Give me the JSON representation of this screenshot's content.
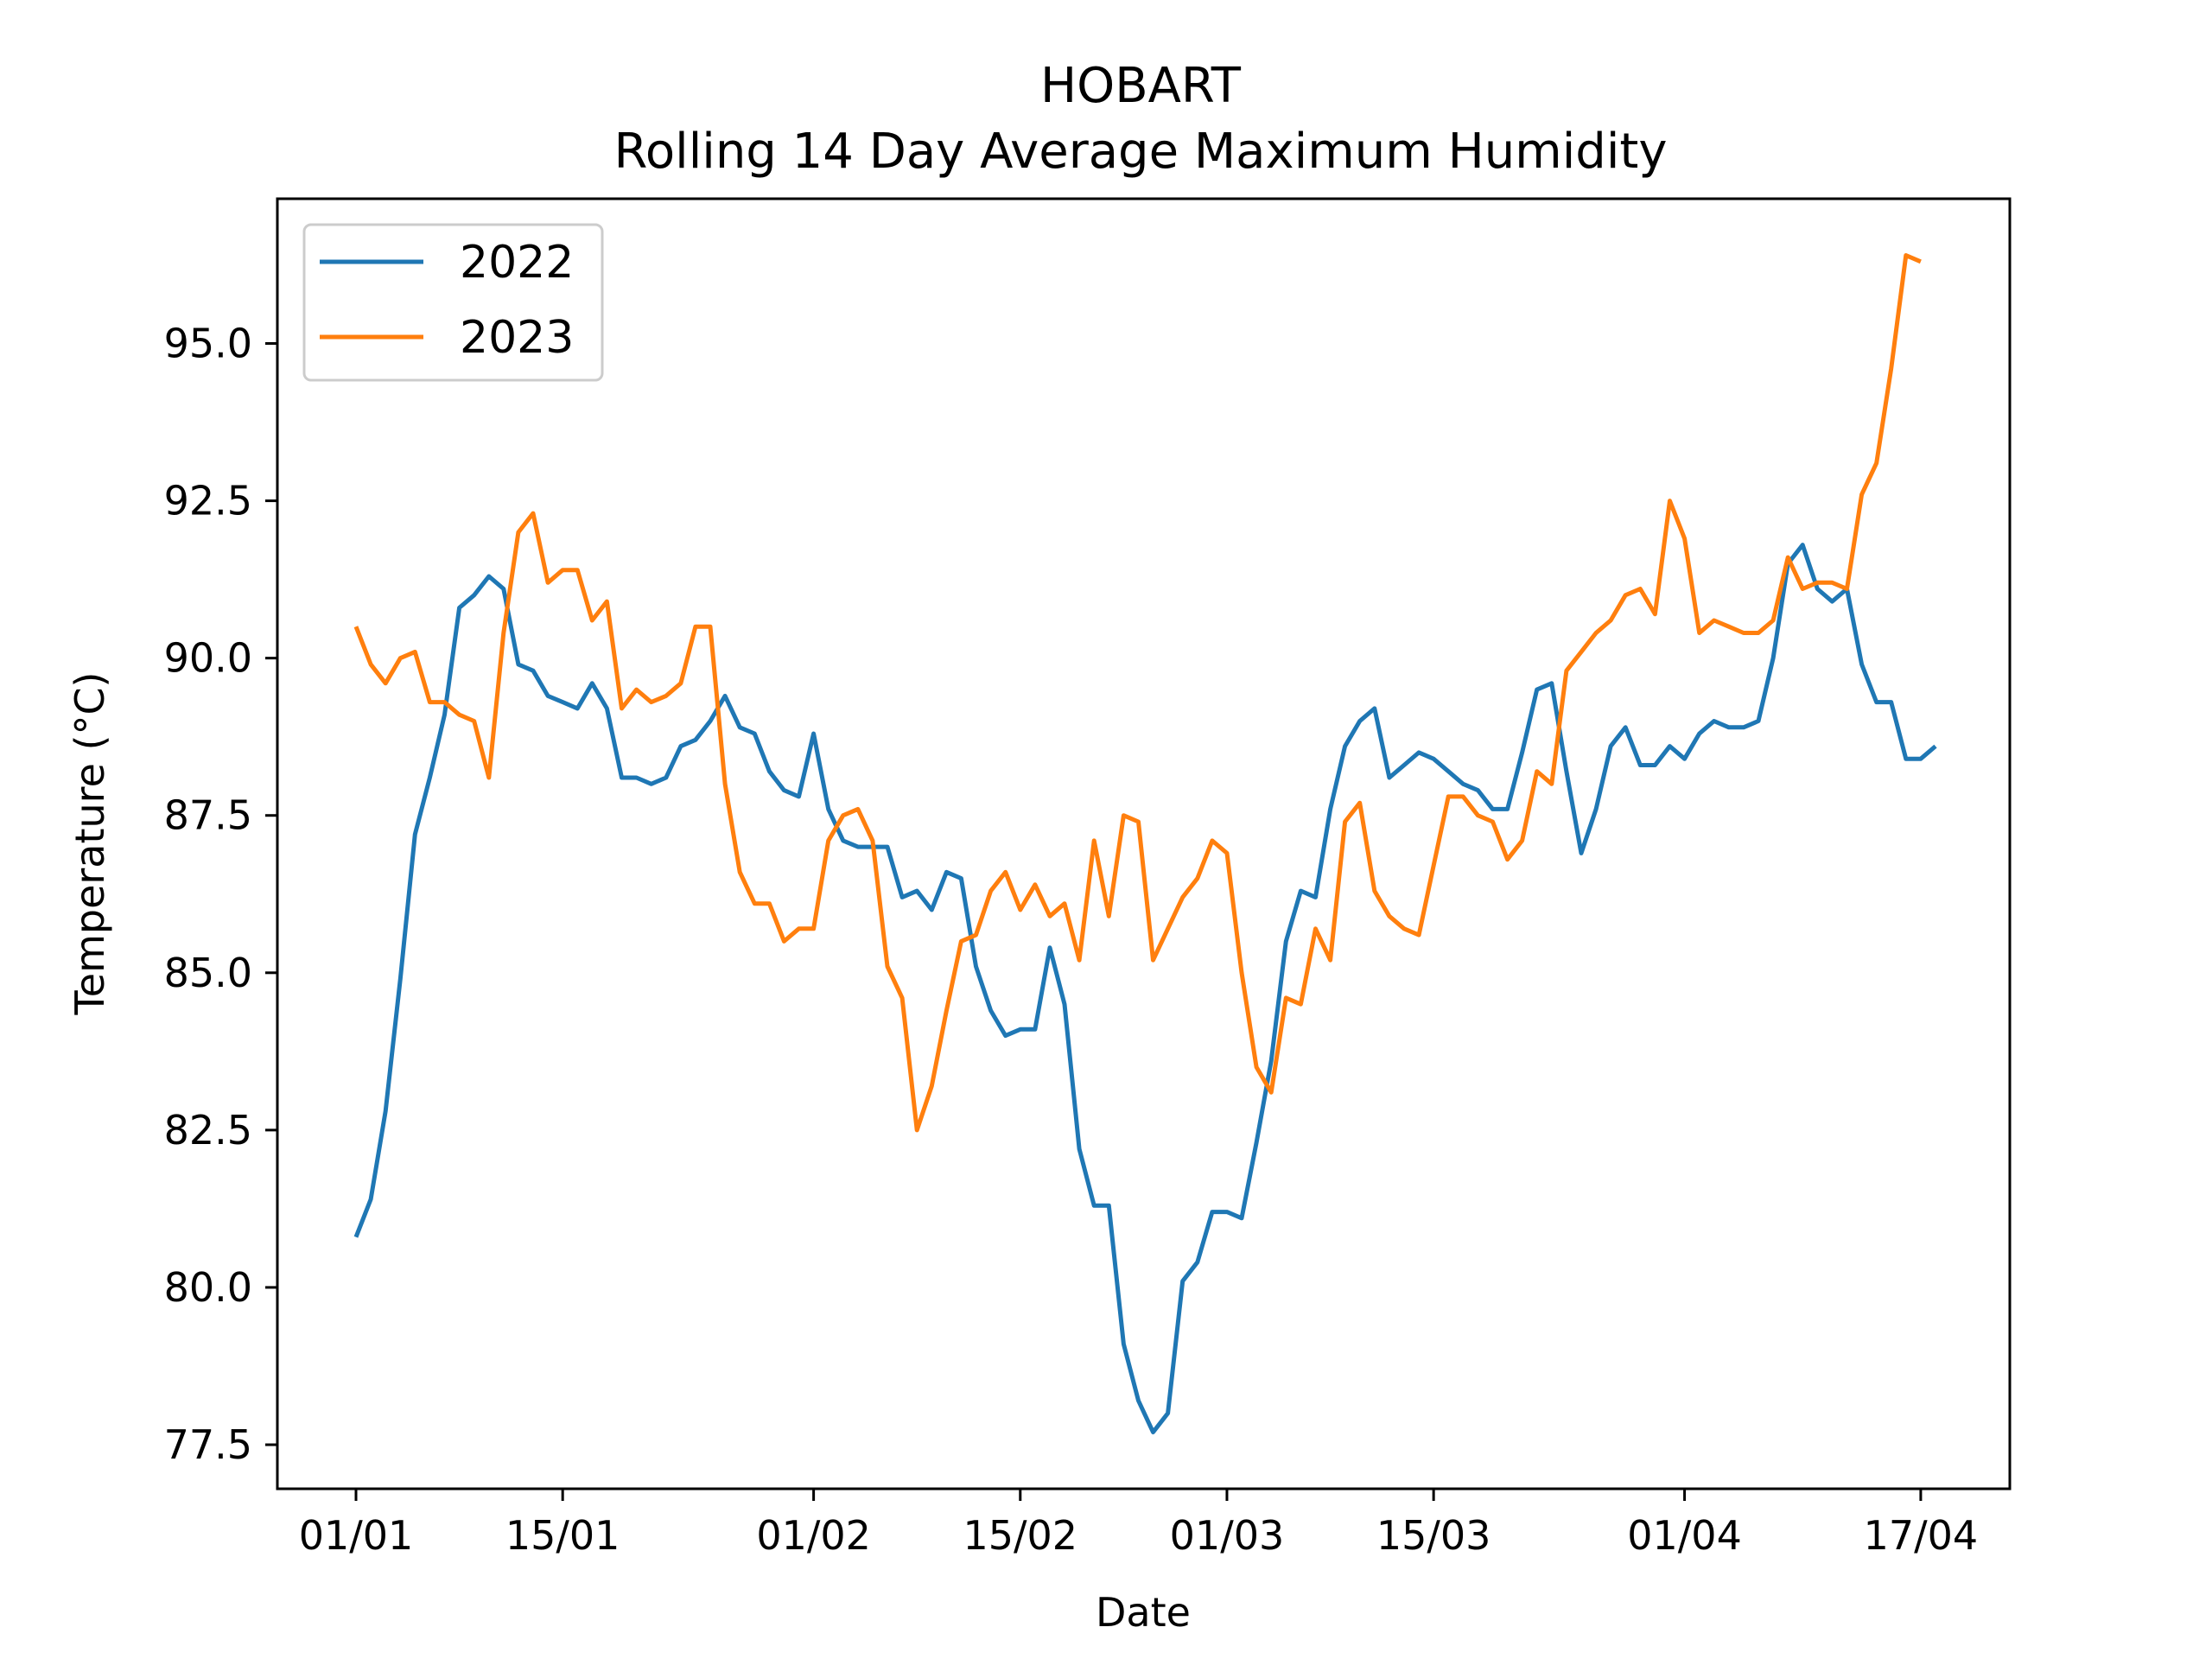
{
  "chart_data": {
    "type": "line",
    "title": "HOBART",
    "subtitle": "Rolling 14 Day Average Maximum Humidity",
    "xlabel": "Date",
    "ylabel": "Temperature (°C)",
    "x_start": "01/01",
    "x_end": "17/04",
    "ylim": [
      76.8,
      97.3
    ],
    "xticks": [
      {
        "day": 0,
        "label": "01/01"
      },
      {
        "day": 14,
        "label": "15/01"
      },
      {
        "day": 31,
        "label": "01/02"
      },
      {
        "day": 45,
        "label": "15/02"
      },
      {
        "day": 59,
        "label": "01/03"
      },
      {
        "day": 73,
        "label": "15/03"
      },
      {
        "day": 90,
        "label": "01/04"
      },
      {
        "day": 106,
        "label": "17/04"
      }
    ],
    "yticks": [
      77.5,
      80.0,
      82.5,
      85.0,
      87.5,
      90.0,
      92.5,
      95.0
    ],
    "ytick_labels": [
      "77.5",
      "80.0",
      "82.5",
      "85.0",
      "87.5",
      "90.0",
      "92.5",
      "95.0"
    ],
    "grid": false,
    "legend_position": "top-left",
    "series": [
      {
        "name": "2022",
        "color": "#1f77b4",
        "values": [
          80.8,
          81.4,
          82.8,
          84.9,
          87.2,
          88.1,
          89.1,
          90.8,
          91.0,
          91.3,
          91.1,
          89.9,
          89.8,
          89.4,
          89.3,
          89.2,
          89.6,
          89.2,
          88.1,
          88.1,
          88.0,
          88.1,
          88.6,
          88.7,
          89.0,
          89.4,
          88.9,
          88.8,
          88.2,
          87.9,
          87.8,
          88.8,
          87.6,
          87.1,
          87.0,
          87.0,
          87.0,
          86.2,
          86.3,
          86.0,
          86.6,
          86.5,
          85.1,
          84.4,
          84.0,
          84.1,
          84.1,
          85.4,
          84.5,
          82.2,
          81.3,
          81.3,
          79.1,
          78.2,
          77.7,
          78.0,
          80.1,
          80.4,
          81.2,
          81.2,
          81.1,
          82.3,
          83.6,
          85.5,
          86.3,
          86.2,
          87.6,
          88.6,
          89.0,
          89.2,
          88.1,
          88.3,
          88.5,
          88.4,
          88.2,
          88.0,
          87.9,
          87.6,
          87.6,
          88.5,
          89.5,
          89.6,
          88.2,
          86.9,
          87.6,
          88.6,
          88.9,
          88.3,
          88.3,
          88.6,
          88.4,
          88.8,
          89.0,
          88.9,
          88.9,
          89.0,
          90.0,
          91.5,
          91.8,
          91.1,
          90.9,
          91.1,
          89.9,
          89.3,
          89.3,
          88.4,
          88.4,
          88.6
        ]
      },
      {
        "name": "2023",
        "color": "#ff7f0e",
        "values": [
          90.5,
          89.9,
          89.6,
          90.0,
          90.1,
          89.3,
          89.3,
          89.1,
          89.0,
          88.1,
          90.4,
          92.0,
          92.3,
          91.2,
          91.4,
          91.4,
          90.6,
          90.9,
          89.2,
          89.5,
          89.3,
          89.4,
          89.6,
          90.5,
          90.5,
          88.0,
          86.6,
          86.1,
          86.1,
          85.5,
          85.7,
          85.7,
          87.1,
          87.5,
          87.6,
          87.1,
          85.1,
          84.6,
          82.5,
          83.2,
          84.4,
          85.5,
          85.6,
          86.3,
          86.6,
          86.0,
          86.4,
          85.9,
          86.1,
          85.2,
          87.1,
          85.9,
          87.5,
          87.4,
          85.2,
          85.7,
          86.2,
          86.5,
          87.1,
          86.9,
          85.0,
          83.5,
          83.1,
          84.6,
          84.5,
          85.7,
          85.2,
          87.4,
          87.7,
          86.3,
          85.9,
          85.7,
          85.6,
          86.7,
          87.8,
          87.8,
          87.5,
          87.4,
          86.8,
          87.1,
          88.2,
          88.0,
          89.8,
          90.1,
          90.4,
          90.6,
          91.0,
          91.1,
          90.7,
          92.5,
          91.9,
          90.4,
          90.6,
          90.5,
          90.4,
          90.4,
          90.6,
          91.6,
          91.1,
          91.2,
          91.2,
          91.1,
          92.6,
          93.1,
          94.6,
          96.4,
          96.3
        ]
      }
    ]
  }
}
